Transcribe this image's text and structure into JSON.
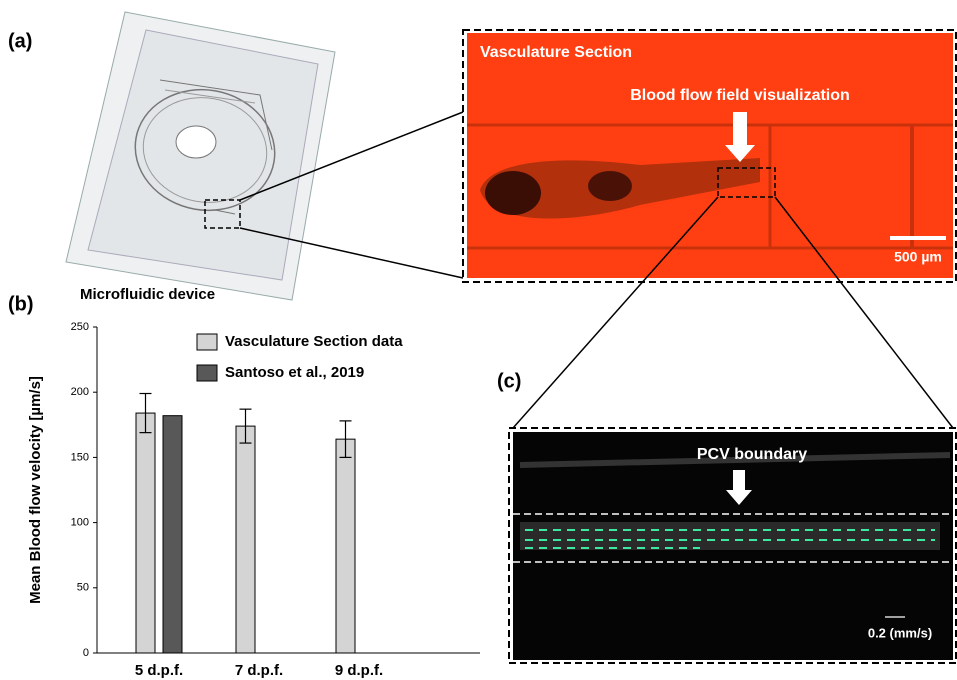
{
  "panel_labels": [
    "(a)",
    "(b)",
    "(c)"
  ],
  "device_caption": "Microfluidic device",
  "image_a": {
    "title": "Vasculature Section",
    "annotation": "Blood flow field visualization",
    "scale_bar": "500 µm"
  },
  "image_c": {
    "annotation": "PCV boundary",
    "scale": "0.2 (mm/s)"
  },
  "chart_data": {
    "type": "bar",
    "ylabel": "Mean Blood flow velocity [µm/s]",
    "categories": [
      "5 d.p.f.",
      "7 d.p.f.",
      "9 d.p.f."
    ],
    "series": [
      {
        "name": "Vasculature Section data",
        "color": "#d4d4d4",
        "values": [
          184,
          174,
          164
        ],
        "errors": [
          15,
          13,
          14
        ]
      },
      {
        "name": "Santoso et al., 2019",
        "color": "#585858",
        "values": [
          182,
          null,
          null
        ]
      }
    ],
    "ylim": [
      0,
      250
    ],
    "yticks": [
      0,
      50,
      100,
      150,
      200,
      250
    ],
    "grid": false
  }
}
